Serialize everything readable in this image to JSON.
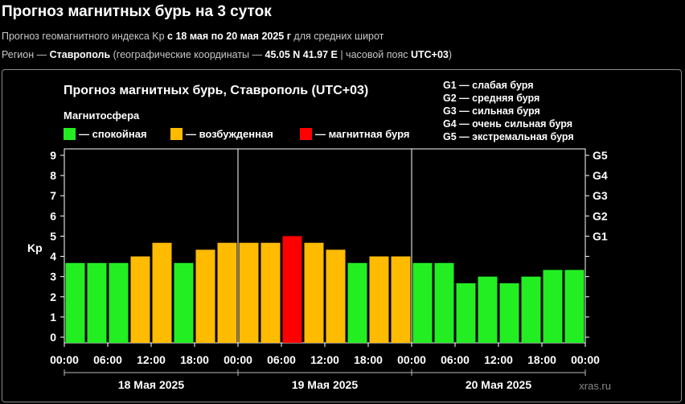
{
  "header": {
    "title": "Прогноз магнитных бурь на 3 суток",
    "sub1": {
      "prefix": "Прогноз геомагнитного индекса Kp ",
      "range": "с 18 мая по 20 мая 2025 г",
      "suffix": " для средних широт"
    },
    "sub2": {
      "prefix": "Регион — ",
      "city": "Ставрополь",
      "coords_prefix": " (географические координаты — ",
      "coords": "45.05 N 41.97 E",
      "tz_prefix": " | часовой пояс ",
      "tz": "UTC+03",
      "tz_suffix": ")"
    }
  },
  "colors": {
    "background": "#000000",
    "calm": "#22ee22",
    "excited": "#ffbb00",
    "storm": "#ff0000",
    "grid": "#ffffff",
    "text": "#ffffff",
    "watermark": "#888888"
  },
  "chart_data": {
    "type": "bar",
    "title": "Прогноз магнитных бурь, Ставрополь (UTC+03)",
    "legend_title": "Магнитосфера",
    "legend": [
      {
        "label": "— спокойная",
        "color": "#22ee22"
      },
      {
        "label": "— возбужденная",
        "color": "#ffbb00"
      },
      {
        "label": "— магнитная буря",
        "color": "#ff0000"
      }
    ],
    "g_legend": [
      "G1 — слабая буря",
      "G2 — средняя буря",
      "G3 — сильная буря",
      "G4 — очень сильная буря",
      "G5 — экстремальная буря"
    ],
    "ylabel": "Kp",
    "ylim": [
      0,
      9
    ],
    "yticks": [
      "0",
      "1",
      "2",
      "3",
      "4",
      "5",
      "6",
      "7",
      "8",
      "9"
    ],
    "right_ticks": [
      {
        "kp": 5,
        "label": "G1"
      },
      {
        "kp": 6,
        "label": "G2"
      },
      {
        "kp": 7,
        "label": "G3"
      },
      {
        "kp": 8,
        "label": "G4"
      },
      {
        "kp": 9,
        "label": "G5"
      }
    ],
    "xticks": [
      "00:00",
      "06:00",
      "12:00",
      "18:00",
      "00:00",
      "06:00",
      "12:00",
      "18:00",
      "00:00",
      "06:00",
      "12:00",
      "18:00",
      "00:00"
    ],
    "days": [
      "18 Мая 2025",
      "19 Мая 2025",
      "20 Мая 2025"
    ],
    "values": [
      3.67,
      3.67,
      3.67,
      4.0,
      4.67,
      3.67,
      4.33,
      4.67,
      4.67,
      4.67,
      5.0,
      4.67,
      4.33,
      3.67,
      4.0,
      4.0,
      3.67,
      3.67,
      2.67,
      3.0,
      2.67,
      3.0,
      3.33,
      3.33
    ],
    "levels": [
      "calm",
      "calm",
      "calm",
      "excited",
      "excited",
      "calm",
      "excited",
      "excited",
      "excited",
      "excited",
      "storm",
      "excited",
      "excited",
      "calm",
      "excited",
      "excited",
      "calm",
      "calm",
      "calm",
      "calm",
      "calm",
      "calm",
      "calm",
      "calm"
    ],
    "watermark": "xras.ru"
  }
}
